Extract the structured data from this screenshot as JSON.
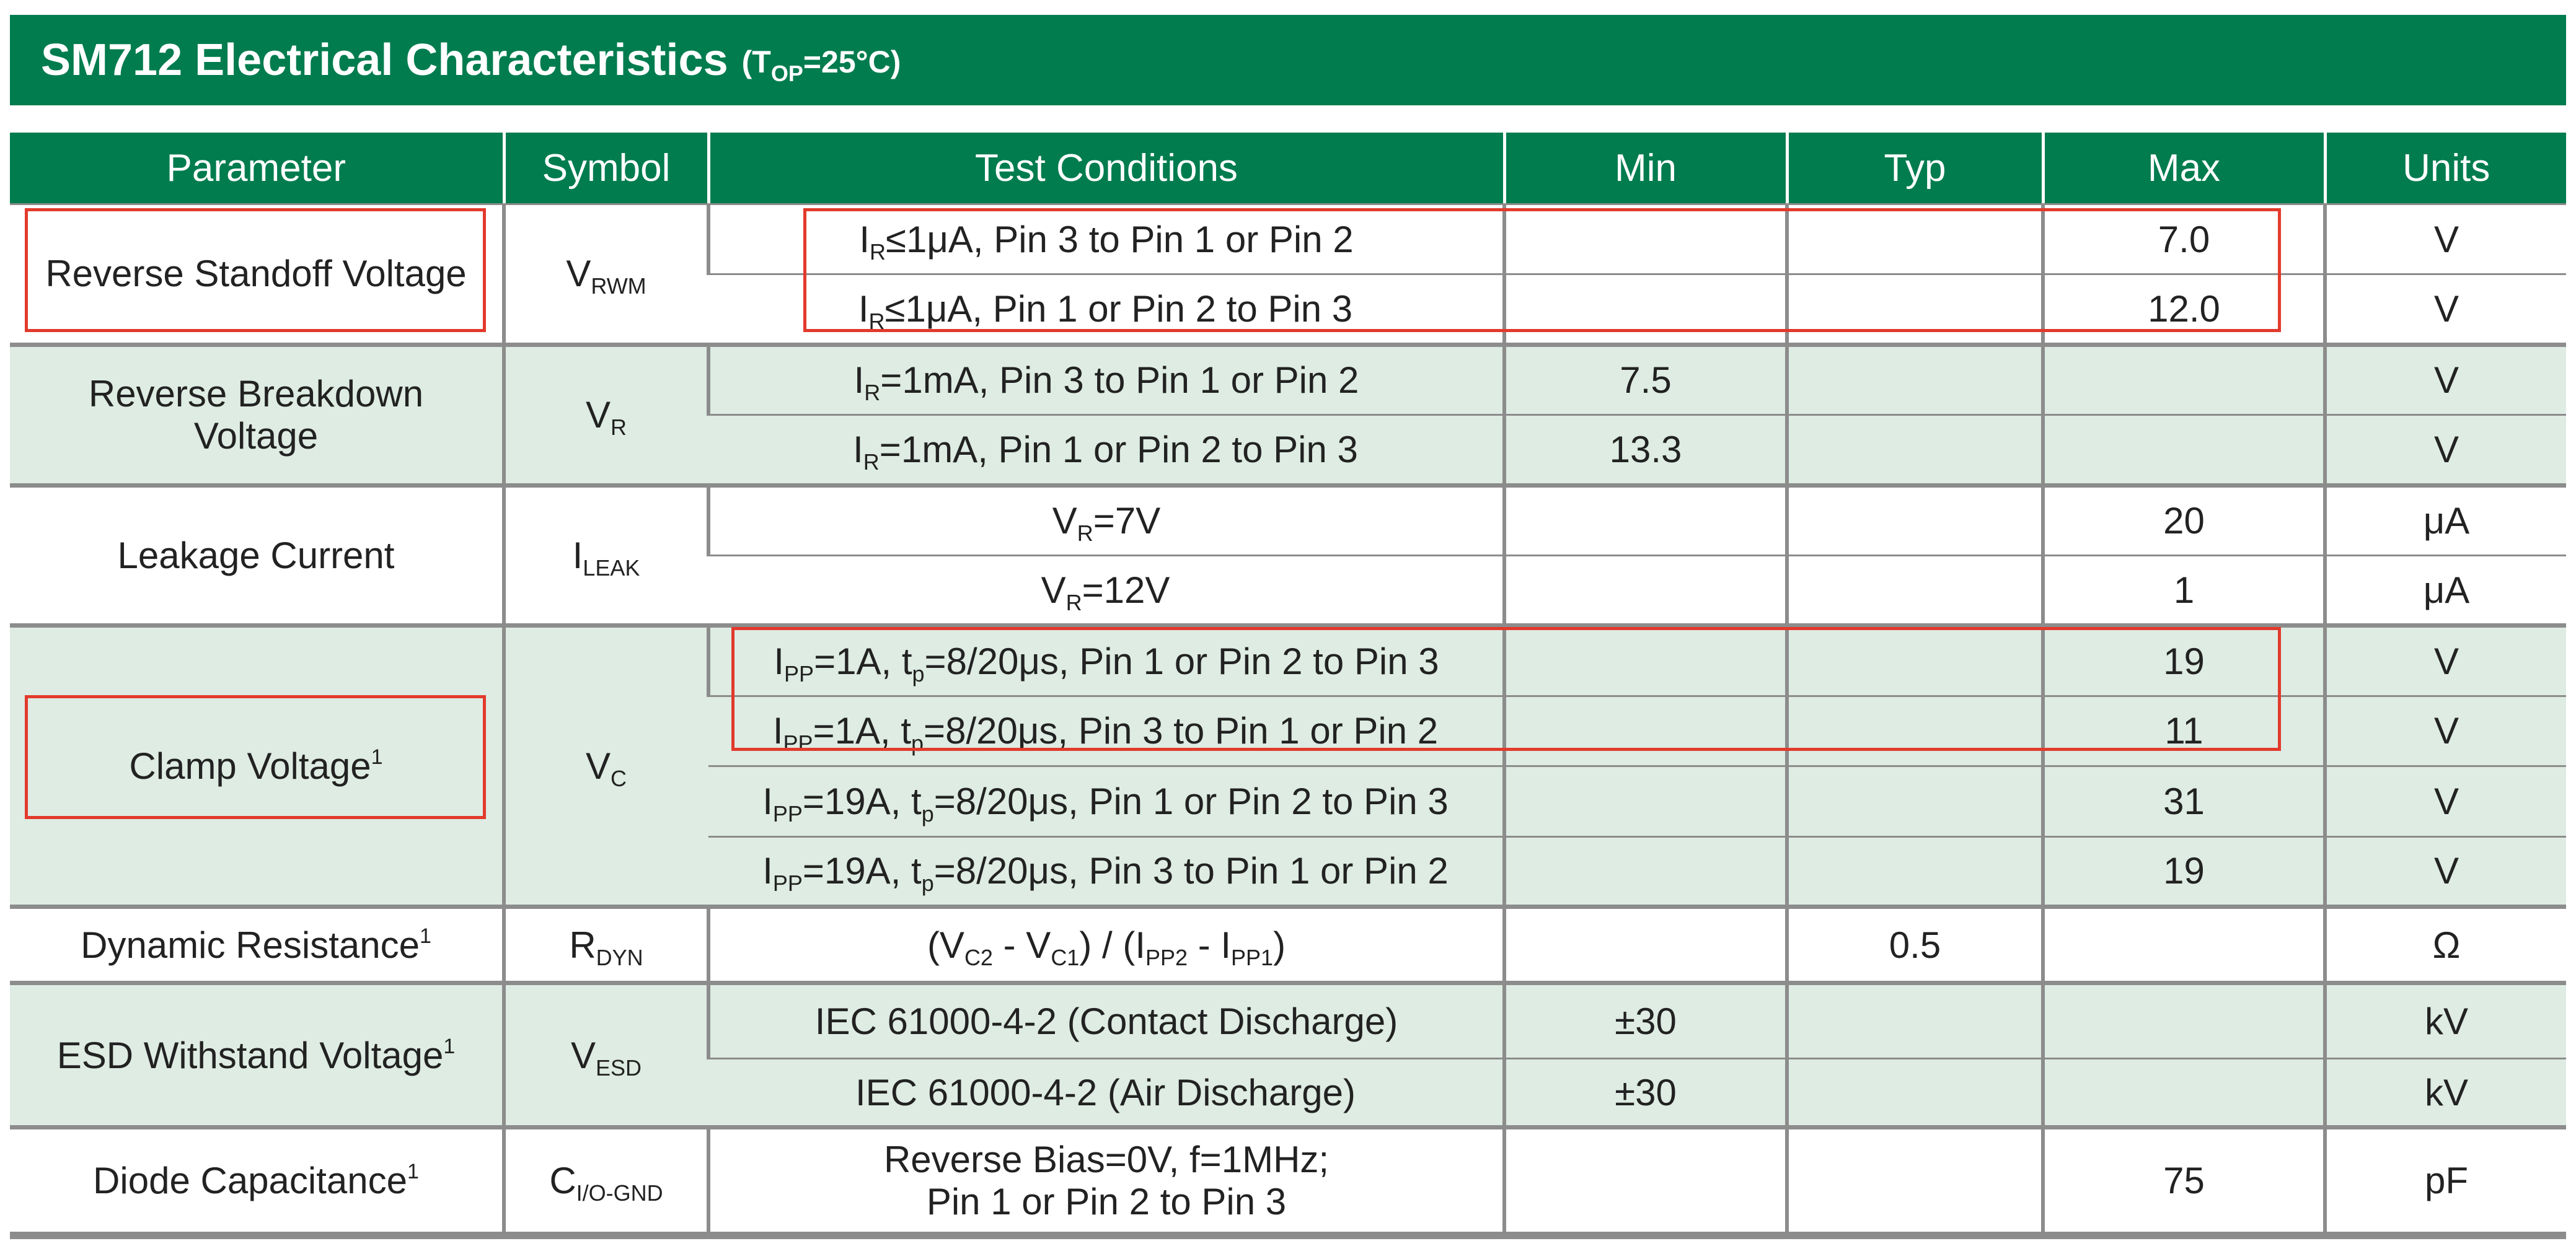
{
  "title": {
    "main": "SM712 Electrical Characteristics",
    "condition_prefix": "(T",
    "condition_sub": "OP",
    "condition_suffix": "=25°C)"
  },
  "headers": [
    "Parameter",
    "Symbol",
    "Test Conditions",
    "Min",
    "Typ",
    "Max",
    "Units"
  ],
  "rows": {
    "rsv": {
      "parameter": "Reverse Standoff Voltage",
      "symbol": "V",
      "symbol_sub": "RWM",
      "c1": {
        "pre": "I",
        "sub": "R",
        "post": "≤1μA, Pin 3 to Pin 1 or Pin 2",
        "max": "7.0",
        "unit": "V"
      },
      "c2": {
        "pre": "I",
        "sub": "R",
        "post": "≤1μA, Pin 1 or Pin 2 to Pin 3",
        "max": "12.0",
        "unit": "V"
      }
    },
    "rbv": {
      "parameter_line1": "Reverse Breakdown",
      "parameter_line2": "Voltage",
      "symbol": "V",
      "symbol_sub": "R",
      "c1": {
        "pre": "I",
        "sub": "R",
        "post": "=1mA, Pin 3 to Pin 1 or Pin 2",
        "min": "7.5",
        "unit": "V"
      },
      "c2": {
        "pre": "I",
        "sub": "R",
        "post": "=1mA, Pin 1 or Pin 2 to Pin 3",
        "min": "13.3",
        "unit": "V"
      }
    },
    "leak": {
      "parameter": "Leakage Current",
      "symbol": "I",
      "symbol_sub": "LEAK",
      "c1": {
        "pre": "V",
        "sub": "R",
        "post": "=7V",
        "max": "20",
        "unit": "μA"
      },
      "c2": {
        "pre": "V",
        "sub": "R",
        "post": "=12V",
        "max": "1",
        "unit": "μA"
      }
    },
    "clamp": {
      "parameter": "Clamp Voltage",
      "footnote": "1",
      "symbol": "V",
      "symbol_sub": "C",
      "c1": {
        "a": "I",
        "a_sub": "PP",
        "b": "=1A, t",
        "b_sub": "p",
        "c": "=8/20μs, Pin 1 or Pin 2 to Pin 3",
        "max": "19",
        "unit": "V"
      },
      "c2": {
        "a": "I",
        "a_sub": "PP",
        "b": "=1A, t",
        "b_sub": "p",
        "c": "=8/20μs, Pin 3 to Pin 1 or Pin 2",
        "max": "11",
        "unit": "V"
      },
      "c3": {
        "a": "I",
        "a_sub": "PP",
        "b": "=19A, t",
        "b_sub": "p",
        "c": "=8/20μs, Pin 1 or Pin 2 to Pin 3",
        "max": "31",
        "unit": "V"
      },
      "c4": {
        "a": "I",
        "a_sub": "PP",
        "b": "=19A, t",
        "b_sub": "p",
        "c": "=8/20μs, Pin 3 to Pin 1 or Pin 2",
        "max": "19",
        "unit": "V"
      }
    },
    "dyn": {
      "parameter": "Dynamic Resistance",
      "footnote": "1",
      "symbol": "R",
      "symbol_sub": "DYN",
      "cond": {
        "p1": "(V",
        "s1": "C2",
        "p2": " - V",
        "s2": "C1",
        "p3": ") / (I",
        "s3": "PP2",
        "p4": " - I",
        "s4": "PP1",
        "p5": ")"
      },
      "typ": "0.5",
      "unit": "Ω"
    },
    "esd": {
      "parameter": "ESD Withstand Voltage",
      "footnote": "1",
      "symbol": "V",
      "symbol_sub": "ESD",
      "c1": {
        "cond": "IEC 61000-4-2 (Contact Discharge)",
        "min": "±30",
        "unit": "kV"
      },
      "c2": {
        "cond": "IEC 61000-4-2 (Air Discharge)",
        "min": "±30",
        "unit": "kV"
      }
    },
    "cap": {
      "parameter": "Diode Capacitance",
      "footnote": "1",
      "symbol": "C",
      "symbol_sub": "I/O-GND",
      "cond_line1": "Reverse Bias=0V, f=1MHz;",
      "cond_line2": "Pin 1 or Pin 2 to Pin 3",
      "max": "75",
      "unit": "pF"
    }
  },
  "highlight_color": "#e23a2c",
  "header_color": "#007c4f",
  "shade_color": "#deece3"
}
